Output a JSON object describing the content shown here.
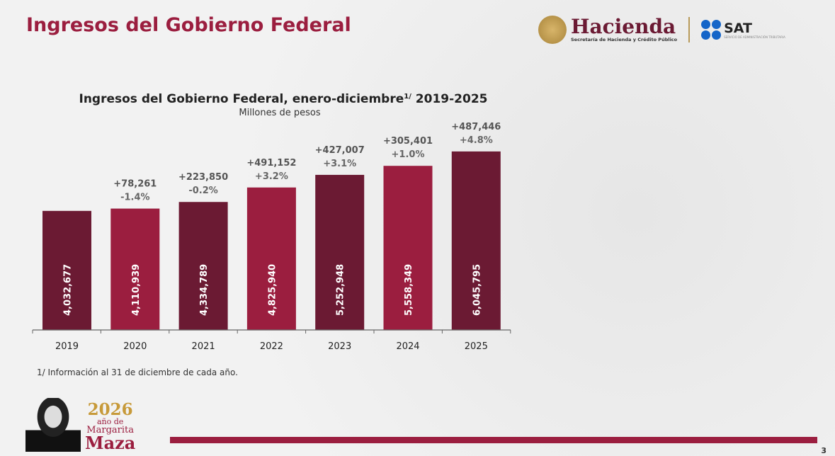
{
  "header": {
    "title": "Ingresos del Gobierno Federal",
    "logo_hacienda": "Hacienda",
    "logo_hacienda_sub": "Secretaría de Hacienda y Crédito Público",
    "logo_sat": "SAT",
    "logo_sat_sub": "SERVICIO DE ADMINISTRACIÓN TRIBUTARIA"
  },
  "chart_data": {
    "type": "bar",
    "title": "Ingresos del Gobierno Federal, enero-diciembre",
    "title_sup": "1/",
    "title_years": " 2019-2025",
    "subtitle": "Millones de pesos",
    "categories": [
      "2019",
      "2020",
      "2021",
      "2022",
      "2023",
      "2024",
      "2025"
    ],
    "values": [
      4032677,
      4110939,
      4334789,
      4825940,
      5252948,
      5558349,
      6045795
    ],
    "value_labels": [
      "4,032,677",
      "4,110,939",
      "4,334,789",
      "4,825,940",
      "5,252,948",
      "5,558,349",
      "6,045,795"
    ],
    "change_abs": [
      "",
      "+78,261",
      "+223,850",
      "+491,152",
      "+427,007",
      "+305,401",
      "+487,446"
    ],
    "change_pct": [
      "",
      "-1.4%",
      "-0.2%",
      "+3.2%",
      "+3.1%",
      "+1.0%",
      "+4.8%"
    ],
    "colors": [
      "#6b1a33",
      "#9b1e3f",
      "#6b1a33",
      "#9b1e3f",
      "#6b1a33",
      "#9b1e3f",
      "#6b1a33"
    ],
    "ylim": [
      0,
      7000000
    ],
    "grid": false
  },
  "footnote": "1/ Información al 31 de diciembre de cada año.",
  "branding": {
    "year": "2026",
    "line1": "año de",
    "line2": "Margarita",
    "line3": "Maza"
  },
  "page_number": "3"
}
